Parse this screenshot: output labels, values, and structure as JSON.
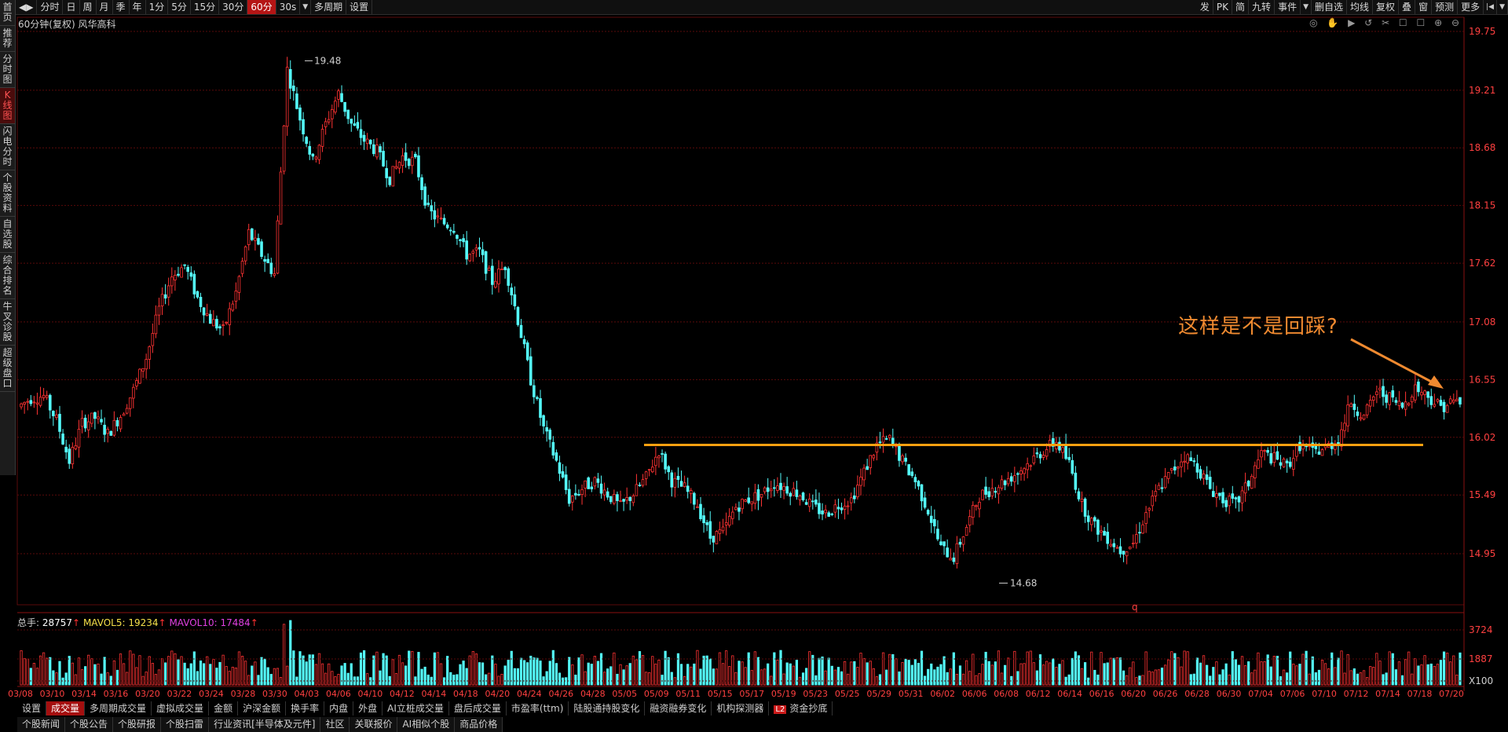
{
  "left_nav": [
    "首页",
    "推荐",
    "分时图",
    "K线图",
    "闪电分时",
    "个股资料",
    "自选股",
    "综合排名",
    "牛叉诊股",
    "超级盘口"
  ],
  "left_nav_active": 3,
  "toolbar_left": [
    "分时",
    "日",
    "周",
    "月",
    "季",
    "年",
    "1分",
    "5分",
    "15分",
    "30分",
    "60分",
    "30s",
    "多周期",
    "设置"
  ],
  "toolbar_active": 10,
  "toolbar_right": [
    "发",
    "PK",
    "简",
    "九转",
    "事件",
    "删自选",
    "均线",
    "复权",
    "叠",
    "窗",
    "预测",
    "更多"
  ],
  "chart_subtitle": "60分钟(复权)  风华高科",
  "toolbar_icons": "◎ ✋ ▶ ↺ ✂ ☐ ☐ ⊕ ⊖",
  "annotation_text": "这样是不是回踩?",
  "marker_q": "q",
  "volume_legend": {
    "label": "总手: ",
    "total": "28757",
    "ma5_label": "MAVOL5: ",
    "ma5": "19234",
    "ma10_label": "MAVOL10: ",
    "ma10": "17484",
    "arrow": "↑"
  },
  "bottom_tabs": [
    "设置",
    "成交量",
    "多周期成交量",
    "虚拟成交量",
    "金额",
    "沪深金额",
    "换手率",
    "内盘",
    "外盘",
    "AI立桩成交量",
    "盘后成交量",
    "市盈率(ttm)",
    "陆股通持股变化",
    "融资融券变化",
    "机构探测器",
    "资金抄底"
  ],
  "bottom_tabs_active": 1,
  "l2_badge": "L2",
  "news_tabs": [
    "个股新闻",
    "个股公告",
    "个股研报",
    "个股扫雷",
    "行业资讯[半导体及元件]",
    "社区",
    "关联报价",
    "AI相似个股",
    "商品价格"
  ],
  "colors": {
    "up": "#ff3333",
    "down": "#54fcfc",
    "support": "#ffa010",
    "annotation": "#f08a30",
    "grid": "#5a0a0a"
  },
  "chart_data": {
    "type": "candlestick",
    "title": "60分钟(复权) 风华高科",
    "y_ticks": [
      "19.75",
      "19.21",
      "18.68",
      "18.15",
      "17.62",
      "17.08",
      "16.55",
      "16.02",
      "15.49",
      "14.95"
    ],
    "ylim": [
      14.5,
      19.85
    ],
    "x_ticks": [
      "03/08",
      "03/10",
      "03/14",
      "03/16",
      "03/20",
      "03/22",
      "03/24",
      "03/28",
      "03/30",
      "04/03",
      "04/06",
      "04/10",
      "04/12",
      "04/14",
      "04/18",
      "04/20",
      "04/24",
      "04/26",
      "04/28",
      "05/05",
      "05/09",
      "05/11",
      "05/15",
      "05/17",
      "05/19",
      "05/23",
      "05/25",
      "05/29",
      "05/31",
      "06/02",
      "06/06",
      "06/08",
      "06/12",
      "06/14",
      "06/16",
      "06/20",
      "06/26",
      "06/28",
      "06/30",
      "07/04",
      "07/06",
      "07/10",
      "07/12",
      "07/14",
      "07/18",
      "07/20"
    ],
    "high_label": "19.48",
    "low_label": "14.68",
    "support_level": 15.95,
    "volume_ticks": [
      "3724",
      "1887",
      "X100"
    ],
    "volume_max": 5600,
    "price_path": [
      [
        0,
        16.3
      ],
      [
        4,
        16.38
      ],
      [
        8,
        16.4
      ],
      [
        12,
        16.18
      ],
      [
        16,
        15.8
      ],
      [
        20,
        16.15
      ],
      [
        24,
        16.2
      ],
      [
        28,
        16.05
      ],
      [
        32,
        16.22
      ],
      [
        36,
        16.45
      ],
      [
        40,
        16.75
      ],
      [
        44,
        17.2
      ],
      [
        48,
        17.5
      ],
      [
        52,
        17.6
      ],
      [
        56,
        17.3
      ],
      [
        60,
        17.1
      ],
      [
        64,
        17.0
      ],
      [
        68,
        17.35
      ],
      [
        72,
        17.9
      ],
      [
        76,
        17.7
      ],
      [
        80,
        17.52
      ],
      [
        84,
        19.4
      ],
      [
        88,
        18.95
      ],
      [
        92,
        18.55
      ],
      [
        96,
        18.9
      ],
      [
        100,
        19.18
      ],
      [
        104,
        18.9
      ],
      [
        108,
        18.75
      ],
      [
        112,
        18.65
      ],
      [
        116,
        18.4
      ],
      [
        120,
        18.6
      ],
      [
        124,
        18.55
      ],
      [
        128,
        18.1
      ],
      [
        132,
        18.0
      ],
      [
        136,
        17.95
      ],
      [
        140,
        17.7
      ],
      [
        144,
        17.72
      ],
      [
        148,
        17.45
      ],
      [
        152,
        17.6
      ],
      [
        156,
        17.1
      ],
      [
        160,
        16.55
      ],
      [
        164,
        16.1
      ],
      [
        168,
        15.8
      ],
      [
        172,
        15.45
      ],
      [
        176,
        15.55
      ],
      [
        180,
        15.62
      ],
      [
        184,
        15.5
      ],
      [
        188,
        15.38
      ],
      [
        192,
        15.5
      ],
      [
        196,
        15.65
      ],
      [
        200,
        15.9
      ],
      [
        204,
        15.62
      ],
      [
        208,
        15.55
      ],
      [
        212,
        15.4
      ],
      [
        216,
        15.1
      ],
      [
        220,
        15.15
      ],
      [
        224,
        15.38
      ],
      [
        228,
        15.45
      ],
      [
        232,
        15.5
      ],
      [
        236,
        15.6
      ],
      [
        240,
        15.55
      ],
      [
        244,
        15.5
      ],
      [
        248,
        15.38
      ],
      [
        252,
        15.32
      ],
      [
        256,
        15.4
      ],
      [
        260,
        15.45
      ],
      [
        264,
        15.7
      ],
      [
        268,
        15.95
      ],
      [
        272,
        16.0
      ],
      [
        276,
        15.8
      ],
      [
        280,
        15.62
      ],
      [
        284,
        15.35
      ],
      [
        288,
        15.0
      ],
      [
        292,
        14.92
      ],
      [
        296,
        15.2
      ],
      [
        300,
        15.48
      ],
      [
        304,
        15.55
      ],
      [
        308,
        15.62
      ],
      [
        312,
        15.7
      ],
      [
        316,
        15.8
      ],
      [
        320,
        15.9
      ],
      [
        324,
        15.98
      ],
      [
        328,
        15.78
      ],
      [
        332,
        15.4
      ],
      [
        336,
        15.2
      ],
      [
        340,
        15.1
      ],
      [
        344,
        14.98
      ],
      [
        348,
        15.05
      ],
      [
        352,
        15.32
      ],
      [
        356,
        15.55
      ],
      [
        360,
        15.7
      ],
      [
        364,
        15.85
      ],
      [
        368,
        15.75
      ],
      [
        372,
        15.55
      ],
      [
        376,
        15.45
      ],
      [
        380,
        15.4
      ],
      [
        384,
        15.6
      ],
      [
        388,
        15.88
      ],
      [
        392,
        15.82
      ],
      [
        396,
        15.75
      ],
      [
        400,
        15.95
      ],
      [
        404,
        15.88
      ],
      [
        408,
        15.92
      ],
      [
        412,
        16.0
      ],
      [
        416,
        16.35
      ],
      [
        420,
        16.2
      ],
      [
        424,
        16.45
      ],
      [
        428,
        16.38
      ],
      [
        432,
        16.3
      ],
      [
        436,
        16.48
      ],
      [
        440,
        16.4
      ],
      [
        444,
        16.3
      ],
      [
        448,
        16.35
      ]
    ],
    "n_bars": 450
  }
}
